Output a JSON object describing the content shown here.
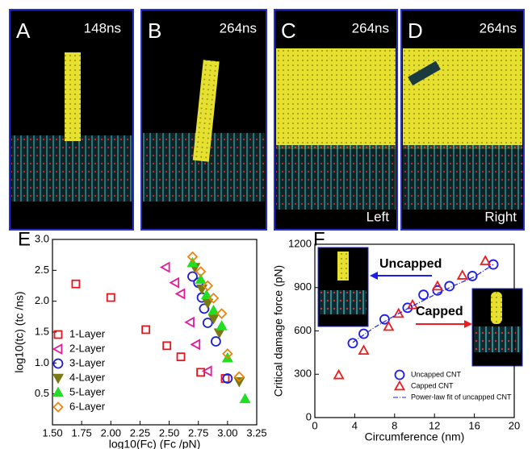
{
  "panels": [
    {
      "label": "A",
      "time": "148ns"
    },
    {
      "label": "B",
      "time": "264ns"
    },
    {
      "label": "C",
      "time": "264ns",
      "side": "Left"
    },
    {
      "label": "D",
      "time": "264ns",
      "side": "Right"
    }
  ],
  "chart_data": [
    {
      "type": "scatter",
      "panel_label": "E",
      "xlabel": "log10(Fc) (Fc /pN)",
      "ylabel": "log10(tc) (tc /ns)",
      "xlim": [
        1.5,
        3.25
      ],
      "ylim": [
        0,
        3.0
      ],
      "xticks": [
        {
          "value": 1.5,
          "label": "1.50"
        },
        1.75,
        {
          "value": 2.0,
          "label": "2.00"
        },
        2.25,
        {
          "value": 2.5,
          "label": "2.50"
        },
        2.75,
        {
          "value": 3.0,
          "label": "3.00"
        },
        3.25
      ],
      "yticks": [
        0.5,
        {
          "value": 1.0,
          "label": "1.0"
        },
        1.5,
        {
          "value": 2.0,
          "label": "2.0"
        },
        2.5,
        {
          "value": 3.0,
          "label": "3.0"
        }
      ],
      "legend": "lower left",
      "series": [
        {
          "name": "1-Layer",
          "color": "#e8141c",
          "marker": "square",
          "x": [
            1.7,
            2.0,
            2.3,
            2.48,
            2.6,
            2.77,
            2.98
          ],
          "values": [
            2.28,
            2.06,
            1.54,
            1.28,
            1.1,
            0.85,
            0.75
          ]
        },
        {
          "name": "2-Layer",
          "color": "#e5199a",
          "marker": "triangle-left",
          "x": [
            2.47,
            2.55,
            2.6,
            2.68,
            2.73,
            2.83
          ],
          "values": [
            2.55,
            2.3,
            2.12,
            1.66,
            1.3,
            0.87
          ]
        },
        {
          "name": "3-Layer",
          "color": "#1c1cd6",
          "marker": "circle",
          "x": [
            2.7,
            2.75,
            2.78,
            2.8,
            2.83,
            2.9,
            3.0
          ],
          "values": [
            2.4,
            2.3,
            2.06,
            1.88,
            1.65,
            1.35,
            0.75
          ]
        },
        {
          "name": "4-Layer",
          "color": "#7a7a14",
          "marker": "triangle-down",
          "x": [
            2.72,
            2.78,
            2.83,
            2.88,
            2.93,
            3.1
          ],
          "values": [
            2.55,
            2.2,
            1.97,
            1.72,
            1.49,
            0.7
          ]
        },
        {
          "name": "5-Layer",
          "color": "#22dd22",
          "marker": "triangle-up",
          "x": [
            2.7,
            2.77,
            2.82,
            2.88,
            2.95,
            3.0,
            3.15
          ],
          "values": [
            2.62,
            2.35,
            2.1,
            1.85,
            1.6,
            1.08,
            0.42
          ]
        },
        {
          "name": "6-Layer",
          "color": "#f0820f",
          "marker": "diamond",
          "x": [
            2.7,
            2.77,
            2.83,
            2.88,
            2.95,
            3.0,
            3.1
          ],
          "values": [
            2.72,
            2.48,
            2.25,
            2.05,
            1.8,
            1.15,
            0.78
          ]
        }
      ]
    },
    {
      "type": "scatter",
      "panel_label": "F",
      "xlabel": "Circumference (nm)",
      "ylabel": "Critical damage force (pN)",
      "xlim": [
        0,
        20
      ],
      "ylim": [
        0,
        1200
      ],
      "xticks": [
        0,
        4,
        8,
        12,
        16,
        20
      ],
      "yticks": [
        0,
        300,
        600,
        900,
        1200
      ],
      "legend": "lower right",
      "annotations": [
        "Uncapped",
        "Capped"
      ],
      "series": [
        {
          "name": "Uncapped CNT",
          "color": "#1c1cf0",
          "marker": "circle",
          "x": [
            3.8,
            4.9,
            7.0,
            9.3,
            10.9,
            12.3,
            13.5,
            15.8,
            17.9
          ],
          "values": [
            515,
            580,
            680,
            760,
            850,
            880,
            910,
            980,
            1060
          ]
        },
        {
          "name": "Capped CNT",
          "color": "#ee1c1c",
          "marker": "triangle-up",
          "x": [
            2.4,
            4.9,
            7.4,
            8.4,
            9.8,
            12.3,
            14.8,
            17.1
          ],
          "values": [
            295,
            465,
            630,
            720,
            780,
            910,
            985,
            1085
          ]
        },
        {
          "name": "Power-law fit of uncapped CNT",
          "color": "#1c1cf0",
          "marker": "line",
          "x": [
            3.8,
            6,
            8,
            10,
            12,
            14,
            16,
            17.9
          ],
          "values": [
            520,
            625,
            705,
            780,
            850,
            915,
            975,
            1060
          ]
        }
      ]
    }
  ]
}
